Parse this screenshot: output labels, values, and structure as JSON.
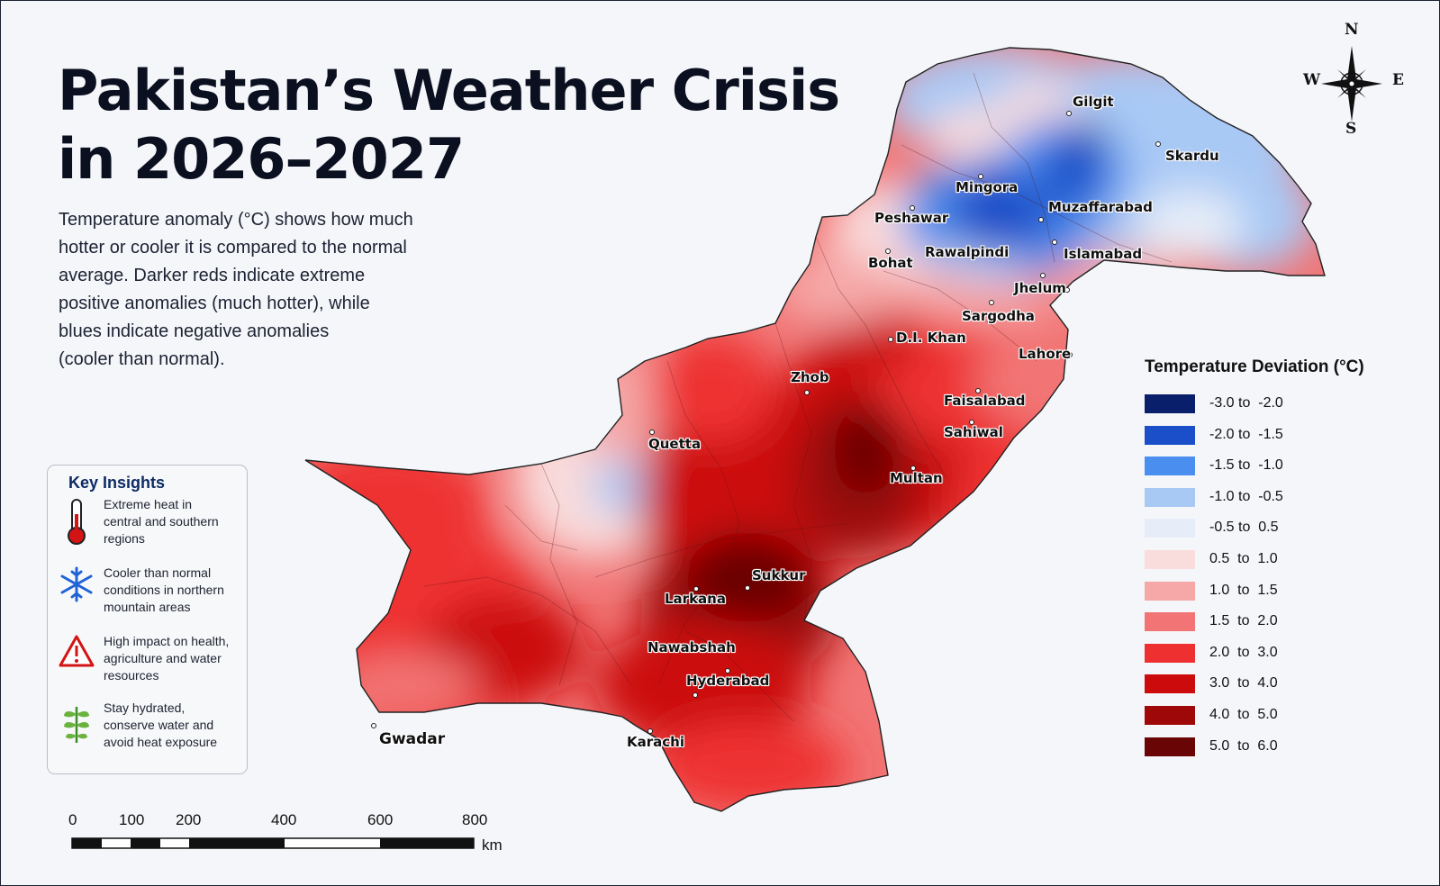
{
  "title_lines": [
    "Pakistan’s Weather Crisis",
    "in 2026–2027"
  ],
  "description_lines": [
    "Temperature anomaly (°C) shows how much",
    "hotter or cooler it is compared to the normal",
    "average. Darker reds indicate extreme",
    "positive anomalies (much hotter), while",
    "blues indicate negative anomalies",
    "(cooler than normal)."
  ],
  "insights": {
    "title": "Key Insights",
    "items": [
      {
        "icon": "thermometer-icon",
        "lines": [
          "Extreme heat in",
          "central and southern",
          "regions"
        ]
      },
      {
        "icon": "snowflake-icon",
        "lines": [
          "Cooler than normal",
          "conditions in northern",
          "mountain areas"
        ]
      },
      {
        "icon": "warning-icon",
        "lines": [
          "High impact on health,",
          "agriculture and water",
          "resources"
        ]
      },
      {
        "icon": "plant-icon",
        "lines": [
          "Stay hydrated,",
          "conserve water and",
          "avoid heat exposure"
        ]
      }
    ]
  },
  "cities": [
    "Gilgit",
    "Skardu",
    "Mingora",
    "Muzaffarabad",
    "Peshawar",
    "Rawalpindi",
    "Islamabad",
    "Bohat",
    "Jhelum",
    "Sargodha",
    "D.I. Khan",
    "Lahore",
    "Zhob",
    "Faisalabad",
    "Sahiwal",
    "Quetta",
    "Multan",
    "Sukkur",
    "Larkana",
    "Nawabshah",
    "Hyderabad",
    "Karachi",
    "Gwadar"
  ],
  "legend": {
    "title": "Temperature Deviation (°C)",
    "items": [
      {
        "label": "-3.0 to  -2.0",
        "color": "#0a1f6b"
      },
      {
        "label": "-2.0 to  -1.5",
        "color": "#1a4fc9"
      },
      {
        "label": "-1.5 to  -1.0",
        "color": "#4a8ef0"
      },
      {
        "label": "-1.0 to  -0.5",
        "color": "#a9c9f5"
      },
      {
        "label": "-0.5 to  0.5",
        "color": "#e6edf8"
      },
      {
        "label": "0.5  to  1.0",
        "color": "#f9dcdc"
      },
      {
        "label": "1.0  to  1.5",
        "color": "#f6a7a7"
      },
      {
        "label": "1.5  to  2.0",
        "color": "#f27474"
      },
      {
        "label": "2.0  to  3.0",
        "color": "#ee3030"
      },
      {
        "label": "3.0  to  4.0",
        "color": "#cc0c0c"
      },
      {
        "label": "4.0  to  5.0",
        "color": "#9e0808"
      },
      {
        "label": "5.0  to  6.0",
        "color": "#6a0505"
      }
    ]
  },
  "compass": {
    "n": "N",
    "s": "S",
    "e": "E",
    "w": "W"
  },
  "scale": {
    "ticks": [
      "0",
      "100",
      "200",
      "400",
      "600",
      "800"
    ],
    "unit": "km"
  }
}
